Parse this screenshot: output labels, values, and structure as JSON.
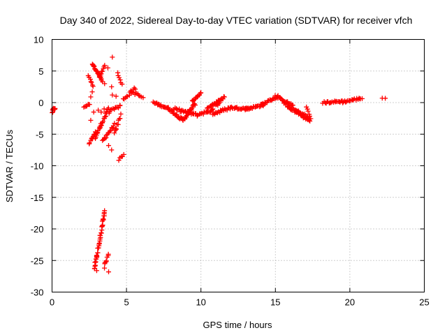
{
  "chart_data": {
    "type": "scatter",
    "title": "Day 340 of 2022, Sidereal Day-to-day VTEC variation (SDTVAR) for receiver vfch",
    "xlabel": "GPS time / hours",
    "ylabel": "SDTVAR / TECUs",
    "xlim": [
      0,
      25
    ],
    "ylim": [
      -30,
      10
    ],
    "xticks": [
      0,
      5,
      10,
      15,
      20,
      25
    ],
    "yticks": [
      -30,
      -25,
      -20,
      -15,
      -10,
      -5,
      0,
      5,
      10
    ],
    "grid": true,
    "marker": "+",
    "color": "#ff0000",
    "series": [
      {
        "name": "SDTVAR",
        "segments": [
          {
            "x": [
              0.0,
              0.2
            ],
            "y": [
              -1.5,
              -0.8
            ],
            "n": 8,
            "jitter": 0.5
          },
          {
            "x": [
              2.15,
              2.5
            ],
            "y": [
              -0.8,
              -0.2
            ],
            "n": 8,
            "jitter": 0.3
          },
          {
            "x": [
              2.45,
              2.75
            ],
            "y": [
              4.3,
              2.5
            ],
            "n": 7,
            "jitter": 0.2
          },
          {
            "x": [
              2.7,
              3.3
            ],
            "y": [
              6.2,
              3.8
            ],
            "n": 22,
            "jitter": 0.3
          },
          {
            "x": [
              3.3,
              3.5
            ],
            "y": [
              3.5,
              3.0
            ],
            "n": 3,
            "jitter": 0.2
          },
          {
            "x": [
              3.2,
              3.55
            ],
            "y": [
              4.0,
              5.8
            ],
            "n": 8,
            "jitter": 0.3
          },
          {
            "x": [
              2.5,
              2.9
            ],
            "y": [
              -6.5,
              -4.8
            ],
            "n": 10,
            "jitter": 0.4
          },
          {
            "x": [
              2.9,
              3.8
            ],
            "y": [
              -5.5,
              -1.0
            ],
            "n": 26,
            "jitter": 0.5
          },
          {
            "x": [
              3.4,
              4.2
            ],
            "y": [
              -6.0,
              -3.5
            ],
            "n": 16,
            "jitter": 0.5
          },
          {
            "x": [
              3.8,
              4.6
            ],
            "y": [
              -1.5,
              -0.5
            ],
            "n": 12,
            "jitter": 0.4
          },
          {
            "x": [
              4.2,
              4.6
            ],
            "y": [
              -5.0,
              -2.0
            ],
            "n": 10,
            "jitter": 0.6
          },
          {
            "x": [
              4.4,
              4.7
            ],
            "y": [
              4.8,
              2.8
            ],
            "n": 6,
            "jitter": 0.3
          },
          {
            "x": [
              4.5,
              4.8
            ],
            "y": [
              -9.0,
              -8.2
            ],
            "n": 5,
            "jitter": 0.3
          },
          {
            "x": [
              2.85,
              3.0
            ],
            "y": [
              -26.3,
              -24.2
            ],
            "n": 12,
            "jitter": 0.5
          },
          {
            "x": [
              3.0,
              3.55
            ],
            "y": [
              -24.5,
              -17.0
            ],
            "n": 32,
            "jitter": 0.5
          },
          {
            "x": [
              3.5,
              3.8
            ],
            "y": [
              -26.0,
              -24.0
            ],
            "n": 8,
            "jitter": 0.5
          },
          {
            "x": [
              4.8,
              5.6
            ],
            "y": [
              0.5,
              2.3
            ],
            "n": 12,
            "jitter": 0.4
          },
          {
            "x": [
              5.3,
              6.1
            ],
            "y": [
              1.8,
              0.8
            ],
            "n": 10,
            "jitter": 0.4
          },
          {
            "x": [
              6.8,
              7.8
            ],
            "y": [
              0.0,
              -0.9
            ],
            "n": 20,
            "jitter": 0.3
          },
          {
            "x": [
              7.8,
              8.8
            ],
            "y": [
              -0.9,
              -2.8
            ],
            "n": 22,
            "jitter": 0.4
          },
          {
            "x": [
              8.8,
              9.6
            ],
            "y": [
              -2.8,
              -0.2
            ],
            "n": 20,
            "jitter": 0.4
          },
          {
            "x": [
              9.4,
              10.0
            ],
            "y": [
              0.2,
              1.5
            ],
            "n": 14,
            "jitter": 0.3
          },
          {
            "x": [
              8.2,
              9.8
            ],
            "y": [
              -1.0,
              -2.0
            ],
            "n": 26,
            "jitter": 0.4
          },
          {
            "x": [
              9.9,
              10.8
            ],
            "y": [
              -1.8,
              -1.2
            ],
            "n": 16,
            "jitter": 0.4
          },
          {
            "x": [
              10.4,
              11.2
            ],
            "y": [
              -0.8,
              0.3
            ],
            "n": 14,
            "jitter": 0.4
          },
          {
            "x": [
              11.0,
              11.6
            ],
            "y": [
              -0.5,
              1.0
            ],
            "n": 12,
            "jitter": 0.4
          },
          {
            "x": [
              10.8,
              12.0
            ],
            "y": [
              -1.8,
              -0.8
            ],
            "n": 20,
            "jitter": 0.4
          },
          {
            "x": [
              12.0,
              13.2
            ],
            "y": [
              -0.8,
              -1.0
            ],
            "n": 22,
            "jitter": 0.3
          },
          {
            "x": [
              13.0,
              14.2
            ],
            "y": [
              -1.0,
              -0.4
            ],
            "n": 22,
            "jitter": 0.3
          },
          {
            "x": [
              14.0,
              15.2
            ],
            "y": [
              -0.4,
              1.0
            ],
            "n": 22,
            "jitter": 0.3
          },
          {
            "x": [
              15.0,
              16.2
            ],
            "y": [
              1.0,
              -0.5
            ],
            "n": 22,
            "jitter": 0.3
          },
          {
            "x": [
              15.6,
              16.8
            ],
            "y": [
              -0.3,
              -1.8
            ],
            "n": 20,
            "jitter": 0.4
          },
          {
            "x": [
              16.4,
              17.3
            ],
            "y": [
              -1.5,
              -2.9
            ],
            "n": 18,
            "jitter": 0.4
          },
          {
            "x": [
              16.0,
              17.2
            ],
            "y": [
              -1.0,
              -2.2
            ],
            "n": 16,
            "jitter": 0.4
          },
          {
            "x": [
              17.1,
              17.4
            ],
            "y": [
              -0.8,
              -2.5
            ],
            "n": 6,
            "jitter": 0.3
          },
          {
            "x": [
              18.2,
              19.5
            ],
            "y": [
              0.0,
              0.2
            ],
            "n": 20,
            "jitter": 0.3
          },
          {
            "x": [
              19.5,
              20.8
            ],
            "y": [
              0.1,
              0.7
            ],
            "n": 20,
            "jitter": 0.3
          },
          {
            "x": [
              22.2,
              22.4
            ],
            "y": [
              0.7,
              0.7
            ],
            "n": 2,
            "jitter": 0.1
          }
        ],
        "points": [
          {
            "x": 0.05,
            "y": -1.5
          },
          {
            "x": 0.1,
            "y": -0.9
          },
          {
            "x": 2.7,
            "y": 1.7
          },
          {
            "x": 2.6,
            "y": 0.9
          },
          {
            "x": 3.75,
            "y": 5.5
          },
          {
            "x": 4.05,
            "y": 7.2
          },
          {
            "x": 4.0,
            "y": 2.5
          },
          {
            "x": 4.05,
            "y": 1.2
          },
          {
            "x": 4.3,
            "y": 1.0
          },
          {
            "x": 4.0,
            "y": -7.5
          },
          {
            "x": 3.8,
            "y": -6.8
          },
          {
            "x": 3.8,
            "y": -26.8
          },
          {
            "x": 3.0,
            "y": -26.6
          },
          {
            "x": 2.6,
            "y": -2.8
          },
          {
            "x": 2.8,
            "y": -1.5
          },
          {
            "x": 3.1,
            "y": -1.2
          },
          {
            "x": 3.3,
            "y": -1.5
          },
          {
            "x": 3.5,
            "y": -1.0
          }
        ]
      }
    ]
  }
}
